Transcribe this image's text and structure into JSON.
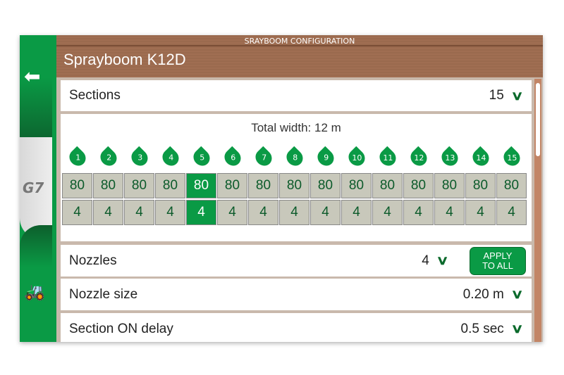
{
  "header": {
    "subtitle": "SRAYBOOM CONFIGURATION",
    "title": "Sprayboom K12D"
  },
  "sidebar": {
    "back": "back-arrow-icon",
    "logo": "G7",
    "tractor": "tractor-icon"
  },
  "sections": {
    "label": "Sections",
    "value": "15"
  },
  "grid": {
    "total_width": "Total width: 12 m",
    "selected": 5,
    "columns": [
      {
        "n": "1",
        "w": "80",
        "z": "4"
      },
      {
        "n": "2",
        "w": "80",
        "z": "4"
      },
      {
        "n": "3",
        "w": "80",
        "z": "4"
      },
      {
        "n": "4",
        "w": "80",
        "z": "4"
      },
      {
        "n": "5",
        "w": "80",
        "z": "4"
      },
      {
        "n": "6",
        "w": "80",
        "z": "4"
      },
      {
        "n": "7",
        "w": "80",
        "z": "4"
      },
      {
        "n": "8",
        "w": "80",
        "z": "4"
      },
      {
        "n": "9",
        "w": "80",
        "z": "4"
      },
      {
        "n": "10",
        "w": "80",
        "z": "4"
      },
      {
        "n": "11",
        "w": "80",
        "z": "4"
      },
      {
        "n": "12",
        "w": "80",
        "z": "4"
      },
      {
        "n": "13",
        "w": "80",
        "z": "4"
      },
      {
        "n": "14",
        "w": "80",
        "z": "4"
      },
      {
        "n": "15",
        "w": "80",
        "z": "4"
      }
    ]
  },
  "nozzles": {
    "label": "Nozzles",
    "value": "4",
    "apply_line1": "APPLY",
    "apply_line2": "TO ALL"
  },
  "nozzle_size": {
    "label": "Nozzle size",
    "value": "0.20 m"
  },
  "on_delay": {
    "label": "Section ON delay",
    "value": "0.5 sec"
  },
  "colors": {
    "accent": "#0a9a45",
    "header": "#9a6a4e"
  }
}
